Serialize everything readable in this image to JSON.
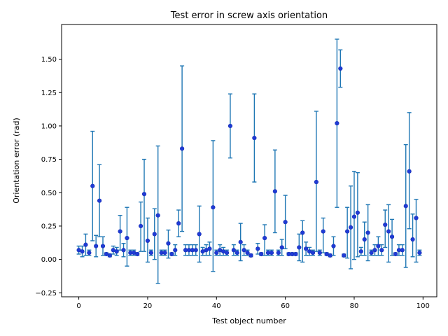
{
  "chart_data": {
    "type": "scatter",
    "title": "Test error in screw axis orientation",
    "xlabel": "Test object number",
    "ylabel": "Orientation error (rad)",
    "xlim": [
      -5,
      104
    ],
    "ylim": [
      -0.28,
      1.76
    ],
    "xticks": [
      0,
      20,
      40,
      60,
      80,
      100
    ],
    "yticks": [
      -0.25,
      0.0,
      0.25,
      0.5,
      0.75,
      1.0,
      1.25,
      1.5
    ],
    "ytick_labels": [
      "−0.25",
      "0.00",
      "0.25",
      "0.50",
      "0.75",
      "1.00",
      "1.25",
      "1.50"
    ],
    "grid": false,
    "legend": "none",
    "marker_color": "#1f3bd6",
    "errorbar_color": "#1f77b4",
    "series": [
      {
        "x": [
          0,
          1,
          2,
          3,
          4,
          5,
          6,
          7,
          8,
          9,
          10,
          11,
          12,
          13,
          14,
          15,
          16,
          17,
          18,
          19,
          20,
          21,
          22,
          23,
          24,
          25,
          26,
          27,
          28,
          29,
          30,
          31,
          32,
          33,
          34,
          35,
          36,
          37,
          38,
          39,
          40,
          41,
          42,
          43,
          44,
          45,
          46,
          47,
          48,
          49,
          50,
          51,
          52,
          53,
          54,
          55,
          56,
          57,
          58,
          59,
          60,
          61,
          62,
          63,
          64,
          65,
          66,
          67,
          68,
          69,
          70,
          71,
          72,
          73,
          74,
          75,
          76,
          77,
          78,
          79,
          80,
          81,
          82,
          83,
          84,
          85,
          86,
          87,
          88,
          89,
          90,
          91,
          92,
          93,
          94,
          95,
          96,
          97,
          98,
          99
        ],
        "y": [
          0.07,
          0.06,
          0.11,
          0.05,
          0.55,
          0.1,
          0.44,
          0.1,
          0.04,
          0.03,
          0.07,
          0.06,
          0.21,
          0.07,
          0.16,
          0.05,
          0.05,
          0.04,
          0.25,
          0.49,
          0.14,
          0.05,
          0.19,
          0.33,
          0.05,
          0.05,
          0.12,
          0.04,
          0.07,
          0.27,
          0.83,
          0.07,
          0.07,
          0.07,
          0.07,
          0.19,
          0.06,
          0.07,
          0.08,
          0.39,
          0.05,
          0.07,
          0.06,
          0.05,
          1.0,
          0.07,
          0.05,
          0.13,
          0.07,
          0.05,
          0.03,
          0.91,
          0.08,
          0.04,
          0.16,
          0.05,
          0.05,
          0.51,
          0.05,
          0.09,
          0.28,
          0.04,
          0.04,
          0.04,
          0.09,
          0.2,
          0.08,
          0.06,
          0.05,
          0.58,
          0.05,
          0.21,
          0.04,
          0.03,
          0.1,
          1.02,
          1.43,
          0.03,
          0.21,
          0.24,
          0.32,
          0.35,
          0.06,
          0.15,
          0.2,
          0.05,
          0.07,
          0.1,
          0.07,
          0.26,
          0.21,
          0.17,
          0.04,
          0.07,
          0.07,
          0.4,
          0.66,
          0.15,
          0.31,
          0.05
        ],
        "err_low": [
          0.03,
          0.04,
          0.08,
          0.02,
          0.41,
          0.08,
          0.27,
          0.07,
          0.01,
          0.01,
          0.03,
          0.03,
          0.14,
          0.05,
          0.21,
          0.02,
          0.02,
          0.01,
          0.19,
          0.43,
          0.16,
          0.02,
          0.19,
          0.51,
          0.02,
          0.02,
          0.11,
          0.01,
          0.04,
          0.1,
          0.62,
          0.04,
          0.04,
          0.04,
          0.04,
          0.21,
          0.03,
          0.04,
          0.05,
          0.48,
          0.02,
          0.04,
          0.03,
          0.02,
          0.24,
          0.04,
          0.02,
          0.14,
          0.04,
          0.02,
          0.01,
          0.33,
          0.04,
          0.01,
          0.13,
          0.02,
          0.02,
          0.31,
          0.02,
          0.06,
          0.2,
          0.01,
          0.01,
          0.01,
          0.1,
          0.22,
          0.05,
          0.03,
          0.02,
          0.52,
          0.02,
          0.16,
          0.01,
          0.01,
          0.07,
          0.63,
          0.14,
          0.01,
          0.2,
          0.31,
          0.32,
          0.33,
          0.03,
          0.12,
          0.21,
          0.02,
          0.04,
          0.07,
          0.04,
          0.17,
          0.23,
          0.14,
          0.01,
          0.04,
          0.04,
          0.46,
          0.43,
          0.13,
          0.33,
          0.02
        ],
        "err_high": [
          0.03,
          0.04,
          0.08,
          0.02,
          0.41,
          0.08,
          0.27,
          0.07,
          0.01,
          0.01,
          0.03,
          0.03,
          0.12,
          0.05,
          0.23,
          0.02,
          0.02,
          0.01,
          0.18,
          0.26,
          0.17,
          0.02,
          0.19,
          0.52,
          0.02,
          0.02,
          0.1,
          0.01,
          0.04,
          0.1,
          0.62,
          0.04,
          0.04,
          0.04,
          0.04,
          0.21,
          0.03,
          0.04,
          0.05,
          0.5,
          0.02,
          0.04,
          0.03,
          0.02,
          0.24,
          0.04,
          0.02,
          0.14,
          0.04,
          0.02,
          0.01,
          0.33,
          0.04,
          0.01,
          0.1,
          0.02,
          0.02,
          0.31,
          0.02,
          0.06,
          0.2,
          0.01,
          0.01,
          0.01,
          0.1,
          0.09,
          0.05,
          0.03,
          0.02,
          0.53,
          0.02,
          0.1,
          0.01,
          0.01,
          0.07,
          0.63,
          0.14,
          0.01,
          0.18,
          0.31,
          0.34,
          0.3,
          0.03,
          0.13,
          0.21,
          0.02,
          0.04,
          0.07,
          0.04,
          0.11,
          0.2,
          0.13,
          0.01,
          0.04,
          0.04,
          0.46,
          0.44,
          0.19,
          0.14,
          0.02
        ]
      }
    ]
  }
}
